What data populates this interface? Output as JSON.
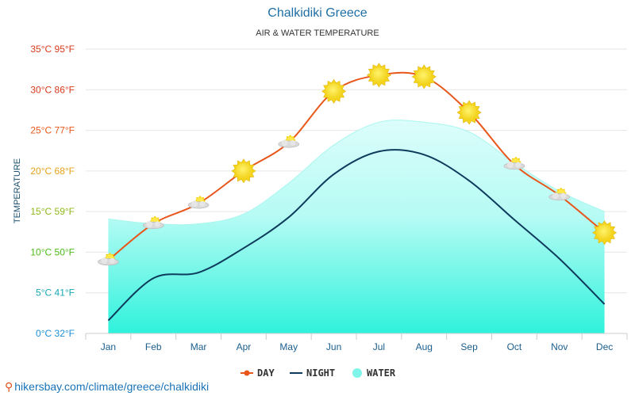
{
  "title": "Chalkidiki Greece",
  "subtitle": "AIR & WATER TEMPERATURE",
  "footer": "hikersbay.com/climate/greece/chalkidiki",
  "chart_data": {
    "type": "line",
    "title": "Chalkidiki Greece",
    "subtitle": "AIR & WATER TEMPERATURE",
    "ylabel": "TEMPERATURE",
    "xlabel": "",
    "ylim": [
      0,
      35
    ],
    "categories": [
      "Jan",
      "Feb",
      "Mar",
      "Apr",
      "May",
      "Jun",
      "Jul",
      "Aug",
      "Sep",
      "Oct",
      "Nov",
      "Dec"
    ],
    "y_ticks": [
      {
        "value": 35,
        "label": "35°C 95°F",
        "color": "#d93a1a"
      },
      {
        "value": 30,
        "label": "30°C 86°F",
        "color": "#d93a1a"
      },
      {
        "value": 25,
        "label": "25°C 77°F",
        "color": "#e8561a"
      },
      {
        "value": 20,
        "label": "20°C 68°F",
        "color": "#e8a21a"
      },
      {
        "value": 15,
        "label": "15°C 59°F",
        "color": "#8fb81a"
      },
      {
        "value": 10,
        "label": "10°C 50°F",
        "color": "#4cbb17"
      },
      {
        "value": 5,
        "label": "5°C 41°F",
        "color": "#17a8b5"
      },
      {
        "value": 0,
        "label": "0°C 32°F",
        "color": "#1a8fd4"
      }
    ],
    "series": [
      {
        "name": "DAY",
        "color": "#e8561a",
        "values": [
          9,
          13.5,
          16,
          20,
          23.5,
          29.8,
          31.8,
          31.6,
          27.2,
          20.8,
          17,
          12.4
        ],
        "icons": [
          "partly-cloudy",
          "partly-cloudy",
          "partly-cloudy",
          "sun",
          "partly-cloudy",
          "sun",
          "sun",
          "sun",
          "sun",
          "partly-cloudy",
          "partly-cloudy",
          "sun"
        ]
      },
      {
        "name": "NIGHT",
        "color": "#0d3b5c",
        "values": [
          1.6,
          6.8,
          7.5,
          10.5,
          14.3,
          19.6,
          22.4,
          22,
          18.8,
          14,
          9.2,
          3.6
        ]
      },
      {
        "name": "WATER",
        "color": "#7ff5ea",
        "values": [
          14.1,
          13.5,
          13.5,
          14.7,
          18.5,
          23.2,
          26,
          26,
          24.8,
          21,
          17.5,
          15
        ]
      }
    ],
    "grid": true,
    "legend_position": "bottom-center"
  }
}
